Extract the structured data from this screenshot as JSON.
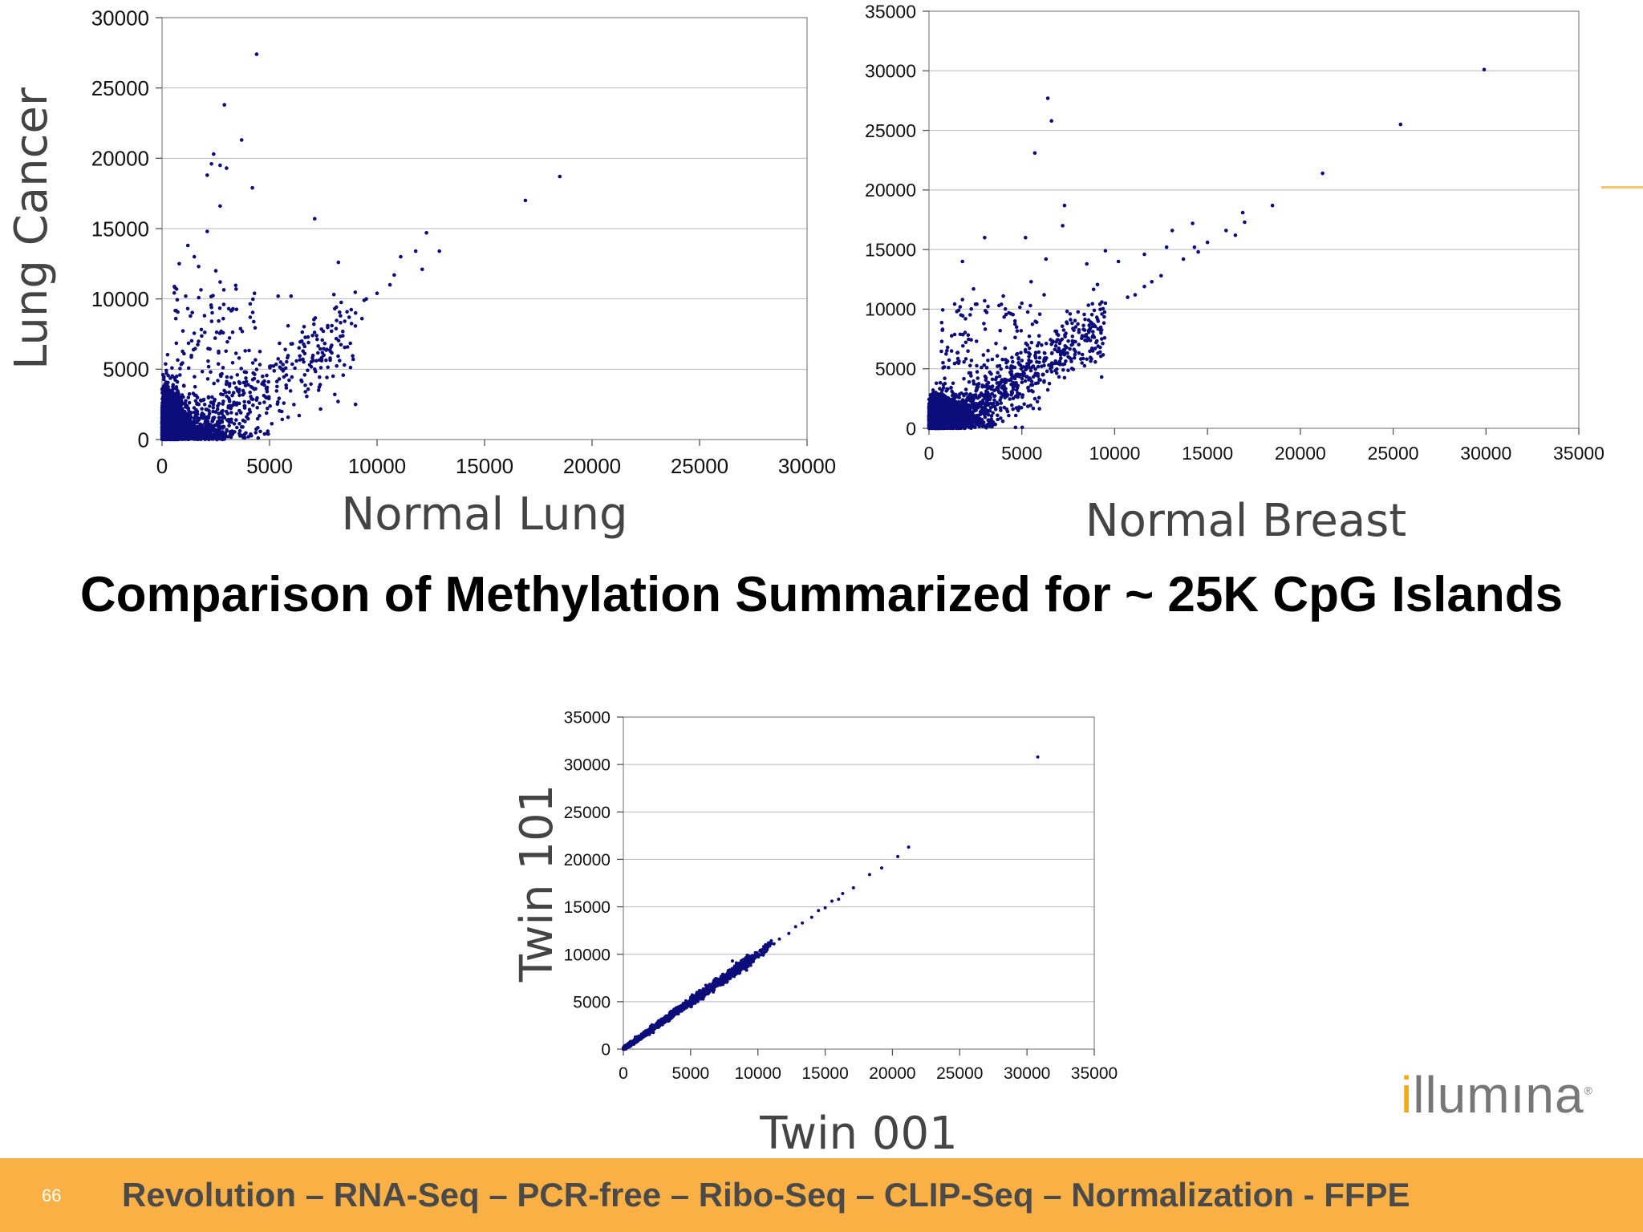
{
  "slide": {
    "title": "Comparison of Methylation Summarized for ~ 25K CpG Islands",
    "footer_text": "Revolution – RNA-Seq – PCR-free – Ribo-Seq – CLIP-Seq – Normalization - FFPE",
    "slide_number": "66",
    "logo": {
      "accent": "i",
      "rest": "llumına",
      "mark": "®"
    },
    "colors": {
      "point": "#0c0c7a",
      "footer": "#f9b044",
      "accent": "#f4a81d"
    }
  },
  "chart_data": [
    {
      "type": "scatter",
      "xlabel": "Normal Lung",
      "ylabel": "Lung Cancer",
      "xlim": [
        0,
        30000
      ],
      "ylim": [
        0,
        30000
      ],
      "xticks": [
        "0",
        "5000",
        "10000",
        "15000",
        "20000",
        "25000",
        "30000"
      ],
      "yticks": [
        "0",
        "5000",
        "10000",
        "15000",
        "20000",
        "25000",
        "30000"
      ],
      "grid": "horizontal",
      "points": [
        [
          4400,
          27400
        ],
        [
          2900,
          23800
        ],
        [
          3700,
          21300
        ],
        [
          2400,
          20300
        ],
        [
          2300,
          19600
        ],
        [
          2700,
          19500
        ],
        [
          3000,
          19300
        ],
        [
          2100,
          18800
        ],
        [
          4200,
          17900
        ],
        [
          18500,
          18700
        ],
        [
          16900,
          17000
        ],
        [
          2700,
          16600
        ],
        [
          7100,
          15700
        ],
        [
          2100,
          14800
        ],
        [
          12300,
          14700
        ],
        [
          12900,
          13400
        ],
        [
          11800,
          13400
        ],
        [
          11100,
          13000
        ],
        [
          12100,
          12100
        ],
        [
          8200,
          12600
        ],
        [
          10800,
          11700
        ],
        [
          10600,
          11000
        ],
        [
          1200,
          13800
        ],
        [
          1500,
          13000
        ],
        [
          800,
          12500
        ],
        [
          1700,
          12300
        ],
        [
          2500,
          12000
        ],
        [
          10000,
          10400
        ],
        [
          9400,
          9900
        ],
        [
          9500,
          10000
        ],
        [
          9000,
          9000
        ],
        [
          8700,
          8700
        ],
        [
          8300,
          8800
        ],
        [
          9300,
          8600
        ],
        [
          7500,
          7700
        ],
        [
          7900,
          8100
        ],
        [
          7000,
          7400
        ],
        [
          6500,
          7000
        ],
        [
          6000,
          6800
        ],
        [
          7100,
          5000
        ],
        [
          9000,
          2500
        ],
        [
          5400,
          10200
        ],
        [
          4300,
          10400
        ],
        [
          6000,
          10200
        ],
        [
          3100,
          9300
        ],
        [
          4100,
          8700
        ],
        [
          2300,
          9400
        ],
        [
          1100,
          10200
        ],
        [
          600,
          10800
        ],
        [
          2700,
          11200
        ]
      ],
      "clusters": [
        {
          "kind": "blob",
          "n": 2600,
          "sx": 450,
          "sy": 1500,
          "maxx": 2500,
          "maxy": 9800
        },
        {
          "kind": "blob",
          "n": 700,
          "sx": 1600,
          "sy": 650,
          "maxx": 6200,
          "maxy": 4200
        },
        {
          "kind": "trend",
          "n": 450,
          "x0": 300,
          "x1": 9000,
          "slope": 0.78,
          "spread": 1300
        },
        {
          "kind": "box",
          "n": 130,
          "x0": 500,
          "x1": 4500,
          "y0": 1000,
          "y1": 11000
        }
      ]
    },
    {
      "type": "scatter",
      "xlabel": "Normal Breast",
      "ylabel": "",
      "xlim": [
        0,
        35000
      ],
      "ylim": [
        0,
        35000
      ],
      "xticks": [
        "0",
        "5000",
        "10000",
        "15000",
        "20000",
        "25000",
        "30000",
        "35000"
      ],
      "yticks": [
        "0",
        "5000",
        "10000",
        "15000",
        "20000",
        "25000",
        "30000",
        "35000"
      ],
      "grid": "horizontal",
      "points": [
        [
          29900,
          30100
        ],
        [
          25400,
          25500
        ],
        [
          6400,
          27700
        ],
        [
          6600,
          25800
        ],
        [
          5700,
          23100
        ],
        [
          21200,
          21400
        ],
        [
          7300,
          18700
        ],
        [
          18500,
          18700
        ],
        [
          16900,
          18100
        ],
        [
          17000,
          17300
        ],
        [
          14200,
          17200
        ],
        [
          16000,
          16600
        ],
        [
          16500,
          16200
        ],
        [
          7200,
          17000
        ],
        [
          13100,
          16600
        ],
        [
          14300,
          15200
        ],
        [
          15000,
          15600
        ],
        [
          5200,
          16000
        ],
        [
          3000,
          16000
        ],
        [
          12800,
          15200
        ],
        [
          14500,
          14800
        ],
        [
          13700,
          14200
        ],
        [
          11600,
          14600
        ],
        [
          1800,
          14000
        ],
        [
          9500,
          14900
        ],
        [
          10200,
          14000
        ],
        [
          6300,
          14200
        ],
        [
          8500,
          13800
        ],
        [
          12500,
          12800
        ],
        [
          12000,
          12300
        ],
        [
          11600,
          11900
        ],
        [
          11100,
          11200
        ],
        [
          10700,
          11000
        ],
        [
          9500,
          10500
        ],
        [
          8900,
          9900
        ],
        [
          7600,
          9600
        ],
        [
          5500,
          12300
        ],
        [
          6200,
          11200
        ],
        [
          5000,
          10500
        ],
        [
          4000,
          11100
        ],
        [
          3000,
          10700
        ],
        [
          2400,
          11700
        ],
        [
          1800,
          10800
        ],
        [
          1600,
          9900
        ],
        [
          8600,
          8200
        ],
        [
          9100,
          6300
        ],
        [
          8500,
          5800
        ],
        [
          7300,
          5400
        ],
        [
          9300,
          4300
        ],
        [
          5800,
          8900
        ]
      ],
      "clusters": [
        {
          "kind": "blob",
          "n": 2600,
          "sx": 700,
          "sy": 1000,
          "maxx": 4200,
          "maxy": 7500
        },
        {
          "kind": "blob",
          "n": 600,
          "sx": 1600,
          "sy": 1300,
          "maxx": 6000,
          "maxy": 7500
        },
        {
          "kind": "trend",
          "n": 600,
          "x0": 500,
          "x1": 9500,
          "slope": 0.9,
          "spread": 1100
        },
        {
          "kind": "box",
          "n": 180,
          "x0": 600,
          "x1": 6000,
          "y0": 1500,
          "y1": 10500
        }
      ]
    },
    {
      "type": "scatter",
      "xlabel": "Twin 001",
      "ylabel": "Twin 101",
      "xlim": [
        0,
        35000
      ],
      "ylim": [
        0,
        35000
      ],
      "xticks": [
        "0",
        "5000",
        "10000",
        "15000",
        "20000",
        "25000",
        "30000",
        "35000"
      ],
      "yticks": [
        "0",
        "5000",
        "10000",
        "15000",
        "20000",
        "25000",
        "30000",
        "35000"
      ],
      "grid": "horizontal",
      "points": [
        [
          30800,
          30800
        ],
        [
          21200,
          21300
        ],
        [
          20400,
          20300
        ],
        [
          19200,
          19100
        ],
        [
          18300,
          18400
        ],
        [
          17100,
          17000
        ],
        [
          16300,
          16400
        ],
        [
          16000,
          15800
        ],
        [
          15500,
          15600
        ],
        [
          15000,
          14900
        ],
        [
          14500,
          14600
        ],
        [
          14000,
          13900
        ],
        [
          13300,
          13300
        ],
        [
          12800,
          12900
        ],
        [
          12300,
          12200
        ],
        [
          11600,
          11600
        ],
        [
          11200,
          11100
        ],
        [
          10800,
          10900
        ]
      ],
      "clusters": [
        {
          "kind": "trend",
          "n": 1700,
          "x0": 0,
          "x1": 9500,
          "slope": 1.0,
          "spread": 220
        },
        {
          "kind": "trend",
          "n": 90,
          "x0": 9000,
          "x1": 11000,
          "slope": 1.0,
          "spread": 160
        }
      ]
    }
  ]
}
